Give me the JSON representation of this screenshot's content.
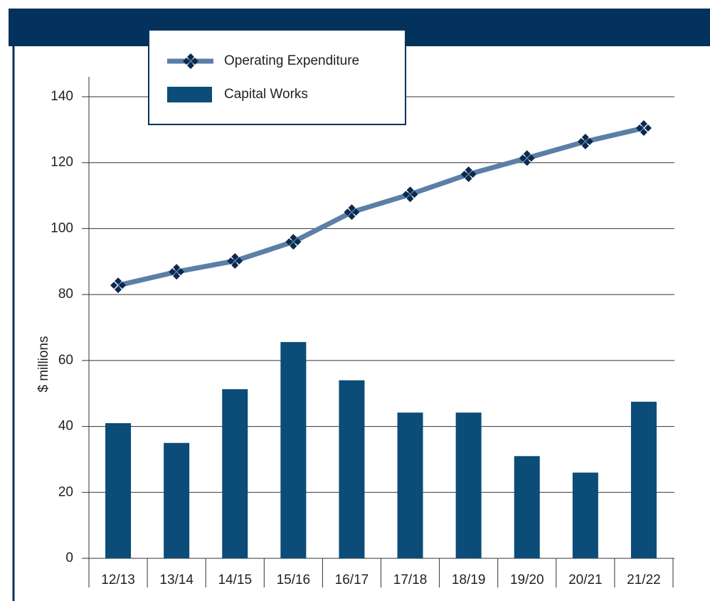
{
  "chart_data": {
    "type": "bar",
    "y_label": "$ millions",
    "categories": [
      "12/13",
      "13/14",
      "14/15",
      "15/16",
      "16/17",
      "17/18",
      "18/19",
      "19/20",
      "20/21",
      "21/22"
    ],
    "series": [
      {
        "name": "Operating Expenditure",
        "type": "line",
        "color": "#5b7fa6",
        "marker_color": "#0a2a4f",
        "values": [
          82.8,
          86.9,
          90.2,
          96,
          105,
          110.4,
          116.5,
          121.4,
          126.4,
          130.5
        ]
      },
      {
        "name": "Capital Works",
        "type": "bar",
        "color": "#0b4c78",
        "values": [
          41,
          35,
          51.3,
          65.6,
          54,
          44.2,
          44.2,
          31,
          26,
          47.5
        ]
      }
    ],
    "ylim": [
      0,
      140
    ],
    "yticks": [
      0,
      20,
      40,
      60,
      80,
      100,
      120,
      140
    ],
    "grid": true,
    "legend": "top"
  }
}
